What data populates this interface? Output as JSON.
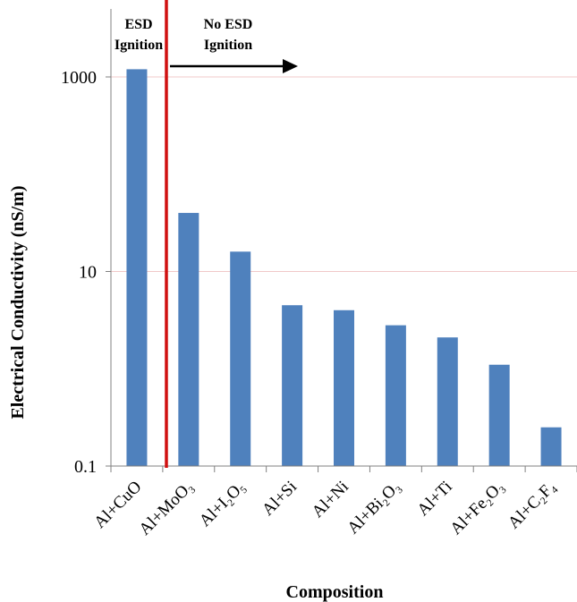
{
  "chart_data": {
    "type": "bar",
    "title": "",
    "xlabel": "Composition",
    "ylabel": "Electrical Conductivity (nS/m)",
    "yscale": "log",
    "ylim": [
      0.1,
      5000
    ],
    "yticks": [
      "0.1",
      "10",
      "1000"
    ],
    "grid": "horizontal",
    "categories": [
      "Al+CuO",
      "Al+MoO₃",
      "Al+I₂O₅",
      "Al+Si",
      "Al+Ni",
      "Al+Bi₂O₃",
      "Al+Ti",
      "Al+Fe₂O₃",
      "Al+C₂F₄"
    ],
    "values": [
      1200,
      40,
      16,
      4.5,
      4,
      2.8,
      2.1,
      1.1,
      0.25
    ],
    "annotations": {
      "left": [
        "ESD",
        "Ignition"
      ],
      "right": [
        "No ESD",
        "Ignition"
      ]
    },
    "colors": {
      "bar": "#4f81bd",
      "divider": "#d01010",
      "grid": "#f0c8c8",
      "axis": "#808080"
    }
  }
}
